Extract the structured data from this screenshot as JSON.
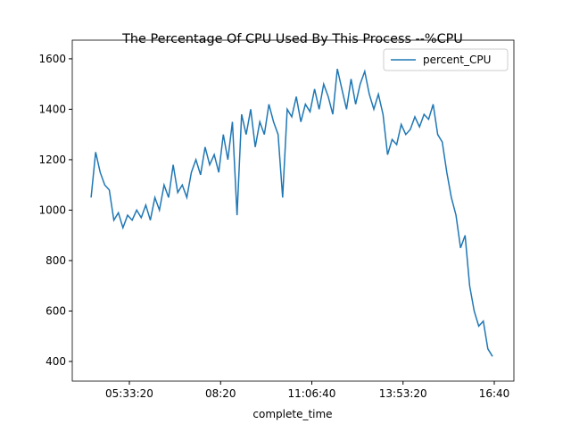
{
  "chart_data": {
    "type": "line",
    "title": "The Percentage Of CPU Used By This Process --%CPU",
    "xlabel": "complete_time",
    "x": [
      15800,
      16300,
      16800,
      17300,
      17800,
      18300,
      18800,
      19300,
      19800,
      20300,
      20800,
      21300,
      21800,
      22300,
      22800,
      23300,
      23800,
      24300,
      24800,
      25300,
      25800,
      26300,
      26800,
      27300,
      27800,
      28300,
      28800,
      29300,
      29800,
      30300,
      30800,
      31300,
      31800,
      32300,
      32800,
      33300,
      33800,
      34300,
      34800,
      35300,
      35800,
      36300,
      36800,
      37300,
      37800,
      38300,
      38800,
      39300,
      39800,
      40300,
      40800,
      41300,
      41800,
      42300,
      42800,
      43300,
      43800,
      44300,
      44800,
      45300,
      45800,
      46300,
      46800,
      47300,
      47800,
      48300,
      48800,
      49300,
      49800,
      50300,
      50800,
      51300,
      51800,
      52300,
      52800,
      53300,
      53800,
      54300,
      54800,
      55300,
      55800,
      56300,
      56800,
      57300,
      57800,
      58300,
      58800,
      59300,
      59800
    ],
    "series": [
      {
        "name": "percent_CPU",
        "color": "#1f77b4",
        "values": [
          1050,
          1230,
          1150,
          1100,
          1080,
          960,
          990,
          930,
          980,
          960,
          1000,
          970,
          1020,
          960,
          1050,
          1000,
          1100,
          1050,
          1180,
          1070,
          1100,
          1050,
          1150,
          1200,
          1140,
          1250,
          1180,
          1220,
          1150,
          1300,
          1200,
          1350,
          980,
          1380,
          1300,
          1400,
          1250,
          1350,
          1300,
          1420,
          1350,
          1300,
          1050,
          1400,
          1370,
          1450,
          1350,
          1420,
          1390,
          1480,
          1400,
          1500,
          1450,
          1380,
          1560,
          1480,
          1400,
          1520,
          1420,
          1500,
          1550,
          1460,
          1400,
          1460,
          1380,
          1220,
          1280,
          1260,
          1340,
          1300,
          1320,
          1370,
          1330,
          1380,
          1360,
          1420,
          1300,
          1270,
          1150,
          1050,
          980,
          850,
          900,
          700,
          600,
          540,
          560,
          450,
          420
        ]
      }
    ],
    "xlim": [
      13741,
      62152
    ],
    "ylim": [
      322,
      1674
    ],
    "xticks": [
      {
        "value": 20000,
        "label": "05:33:20"
      },
      {
        "value": 30000,
        "label": "08:20"
      },
      {
        "value": 40000,
        "label": "11:06:40"
      },
      {
        "value": 50000,
        "label": "13:53:20"
      },
      {
        "value": 60000,
        "label": "16:40"
      }
    ],
    "yticks": [
      400,
      600,
      800,
      1000,
      1200,
      1400,
      1600
    ],
    "legend": "upper right"
  }
}
